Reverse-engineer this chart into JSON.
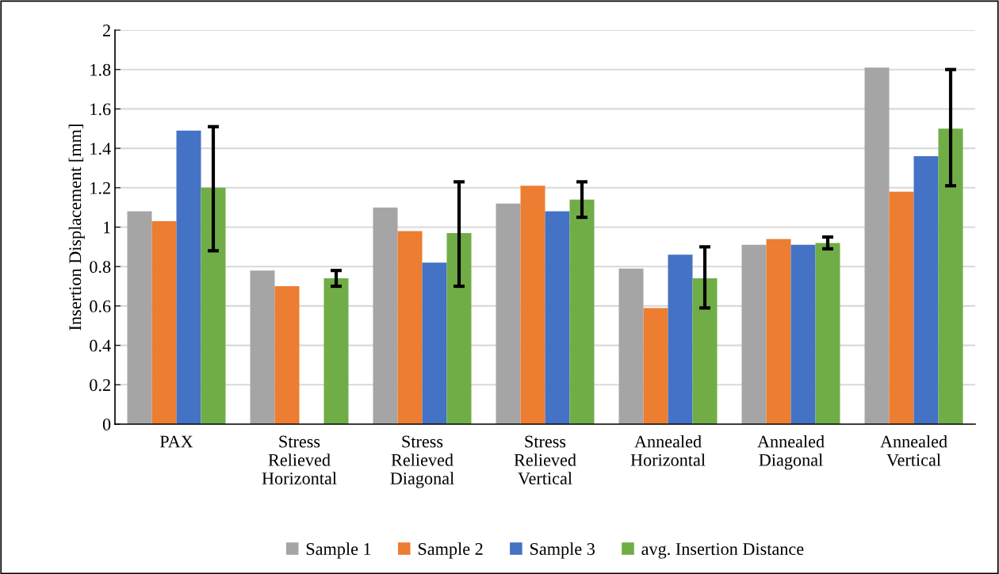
{
  "chart_data": {
    "type": "bar",
    "ylabel": "Insertion Displacement [mm]",
    "categories": [
      "PAX",
      "Stress\nRelieved\nHorizontal",
      "Stress\nRelieved\nDiagonal",
      "Stress\nRelieved\nVertical",
      "Annealed\nHorizontal",
      "Annealed\nDiagonal",
      "Annealed\nVertical"
    ],
    "series": [
      {
        "name": "Sample 1",
        "color": "#a5a5a5",
        "values": [
          1.08,
          0.78,
          1.1,
          1.12,
          0.79,
          0.91,
          1.81
        ]
      },
      {
        "name": "Sample 2",
        "color": "#ed7d31",
        "values": [
          1.03,
          0.7,
          0.98,
          1.21,
          0.59,
          0.94,
          1.18
        ]
      },
      {
        "name": "Sample 3",
        "color": "#4472c4",
        "values": [
          1.49,
          null,
          0.82,
          1.08,
          0.86,
          0.91,
          1.36
        ]
      },
      {
        "name": "avg. Insertion Distance",
        "color": "#70ad47",
        "values": [
          1.2,
          0.74,
          0.97,
          1.14,
          0.74,
          0.92,
          1.5
        ],
        "errors": [
          [
            0.88,
            1.51
          ],
          [
            0.7,
            0.78
          ],
          [
            0.7,
            1.23
          ],
          [
            1.05,
            1.23
          ],
          [
            0.59,
            0.9
          ],
          [
            0.89,
            0.95
          ],
          [
            1.21,
            1.8
          ]
        ]
      }
    ],
    "ylim": [
      0,
      2
    ],
    "yticks": [
      0,
      0.2,
      0.4,
      0.6,
      0.8,
      1,
      1.2,
      1.4,
      1.6,
      1.8,
      2
    ],
    "grid": "y",
    "legend": "bottom"
  }
}
